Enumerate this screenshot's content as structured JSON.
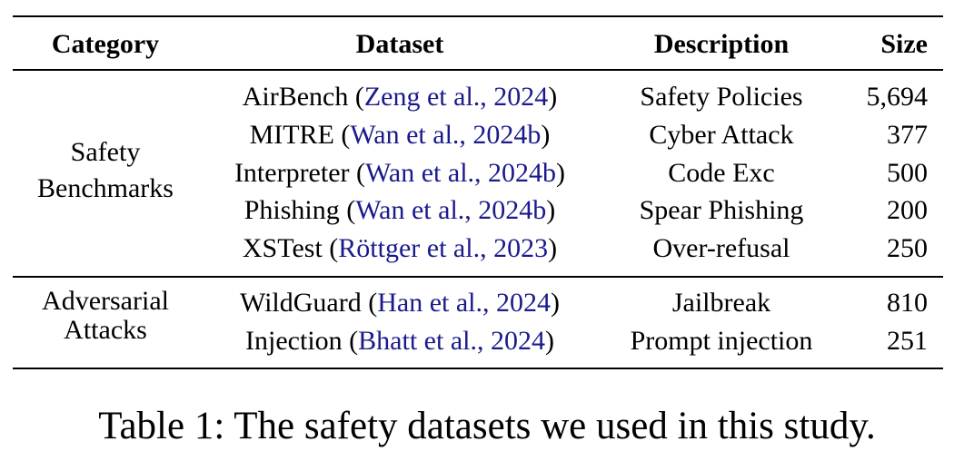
{
  "table": {
    "headers": {
      "category": "Category",
      "dataset": "Dataset",
      "description": "Description",
      "size": "Size"
    },
    "groups": [
      {
        "category_line1": "Safety",
        "category_line2": "Benchmarks",
        "rows": [
          {
            "name": "AirBench",
            "cite_author": "Zeng et al.",
            "cite_year": "2024",
            "description": "Safety Policies",
            "size": "5,694"
          },
          {
            "name": "MITRE",
            "cite_author": "Wan et al.",
            "cite_year": "2024b",
            "description": "Cyber Attack",
            "size": "377"
          },
          {
            "name": "Interpreter",
            "cite_author": "Wan et al.",
            "cite_year": "2024b",
            "description": "Code Exc",
            "size": "500"
          },
          {
            "name": "Phishing",
            "cite_author": "Wan et al.",
            "cite_year": "2024b",
            "description": "Spear Phishing",
            "size": "200"
          },
          {
            "name": "XSTest",
            "cite_author": "Röttger et al.",
            "cite_year": "2023",
            "description": "Over-refusal",
            "size": "250"
          }
        ]
      },
      {
        "category_line1": "Adversarial",
        "category_line2": "Attacks",
        "rows": [
          {
            "name": "WildGuard",
            "cite_author": "Han et al.",
            "cite_year": "2024",
            "description": "Jailbreak",
            "size": "810"
          },
          {
            "name": "Injection",
            "cite_author": "Bhatt et al.",
            "cite_year": "2024",
            "description": "Prompt injection",
            "size": "251"
          }
        ]
      }
    ]
  },
  "caption": "Table 1: The safety datasets we used in this study."
}
